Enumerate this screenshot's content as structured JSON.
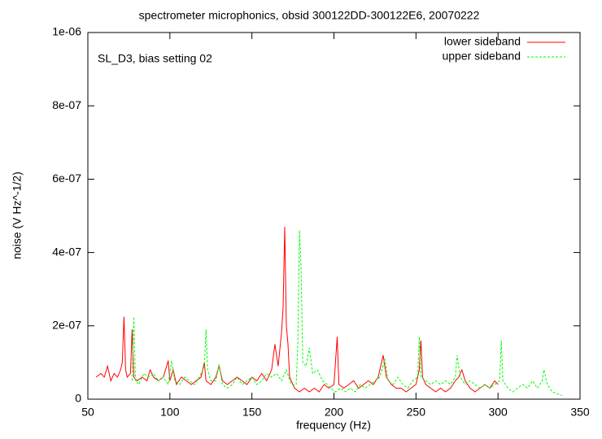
{
  "chart_data": {
    "type": "line",
    "title": "spectrometer microphonics, obsid 300122DD-300122E6, 20070222",
    "annotation": "SL_D3, bias setting 02",
    "x_label": "frequency (Hz)",
    "y_label": "noise (V Hz^-1/2)",
    "xlim": [
      50,
      350
    ],
    "xticks": [
      50,
      100,
      150,
      200,
      250,
      300,
      350
    ],
    "ylim": [
      0,
      1e-06
    ],
    "yticks": [
      0,
      {
        "value": 2e-07,
        "label": "2e-07"
      },
      {
        "value": 4e-07,
        "label": "4e-07"
      },
      {
        "value": 6e-07,
        "label": "6e-07"
      },
      {
        "value": 8e-07,
        "label": "8e-07"
      },
      {
        "value": 1e-06,
        "label": "1e-06"
      }
    ],
    "legend": "top-right",
    "series": [
      {
        "name": "lower sideband",
        "color": "#ff0000",
        "dash": false,
        "x": [
          55,
          58,
          60,
          62,
          64,
          66,
          68,
          70,
          71,
          72,
          73,
          74,
          76,
          77,
          78,
          80,
          83,
          86,
          88,
          90,
          93,
          96,
          99,
          100,
          102,
          104,
          107,
          110,
          113,
          116,
          119,
          121,
          122,
          125,
          128,
          130,
          132,
          135,
          138,
          141,
          144,
          147,
          150,
          153,
          156,
          159,
          162,
          164,
          166,
          168,
          169,
          170,
          171,
          172,
          173,
          176,
          179,
          182,
          185,
          188,
          191,
          194,
          197,
          200,
          202,
          203,
          206,
          209,
          212,
          215,
          218,
          221,
          224,
          227,
          230,
          232,
          235,
          238,
          241,
          244,
          247,
          250,
          252,
          253,
          254,
          256,
          259,
          262,
          265,
          268,
          271,
          274,
          276,
          278,
          280,
          283,
          286,
          289,
          292,
          295,
          298,
          300
        ],
        "values": [
          6e-08,
          7e-08,
          6e-08,
          9e-08,
          5e-08,
          7e-08,
          6e-08,
          8e-08,
          1e-07,
          2.25e-07,
          8e-08,
          6e-08,
          7e-08,
          1.9e-07,
          6e-08,
          5e-08,
          6e-08,
          5e-08,
          8e-08,
          6e-08,
          5e-08,
          6e-08,
          1.05e-07,
          5e-08,
          8e-08,
          4e-08,
          6e-08,
          5e-08,
          4e-08,
          5e-08,
          6e-08,
          1e-07,
          5e-08,
          4e-08,
          6e-08,
          9e-08,
          5e-08,
          4e-08,
          5e-08,
          6e-08,
          5e-08,
          4e-08,
          6e-08,
          5e-08,
          7e-08,
          5e-08,
          8e-08,
          1.5e-07,
          9e-08,
          1.8e-07,
          2.5e-07,
          4.7e-07,
          2e-07,
          1.5e-07,
          6e-08,
          3e-08,
          2e-08,
          3e-08,
          2e-08,
          3e-08,
          2e-08,
          4e-08,
          3e-08,
          4e-08,
          1.7e-07,
          4e-08,
          3e-08,
          4e-08,
          5e-08,
          3e-08,
          4e-08,
          5e-08,
          4e-08,
          6e-08,
          1.2e-07,
          6e-08,
          4e-08,
          3e-08,
          3e-08,
          2e-08,
          3e-08,
          4e-08,
          8e-08,
          1.6e-07,
          6e-08,
          4e-08,
          3e-08,
          2e-08,
          3e-08,
          2e-08,
          3e-08,
          5e-08,
          6e-08,
          8e-08,
          5e-08,
          3e-08,
          2e-08,
          3e-08,
          4e-08,
          3e-08,
          5e-08,
          4e-08
        ]
      },
      {
        "name": "upper sideband",
        "color": "#00ff00",
        "dash": true,
        "x": [
          77,
          78,
          79,
          81,
          84,
          87,
          90,
          93,
          96,
          99,
          101,
          103,
          106,
          109,
          112,
          115,
          118,
          121,
          122,
          123,
          125,
          128,
          130,
          132,
          135,
          138,
          141,
          144,
          147,
          150,
          153,
          156,
          159,
          162,
          165,
          168,
          171,
          174,
          177,
          178,
          179,
          180,
          181,
          183,
          185,
          187,
          190,
          193,
          196,
          198,
          201,
          204,
          207,
          210,
          213,
          216,
          219,
          222,
          225,
          228,
          231,
          233,
          236,
          239,
          242,
          245,
          248,
          251,
          252,
          253,
          256,
          259,
          262,
          265,
          268,
          271,
          274,
          275,
          277,
          280,
          283,
          286,
          289,
          292,
          295,
          298,
          301,
          302,
          303,
          306,
          309,
          312,
          315,
          318,
          321,
          324,
          327,
          328,
          330,
          333,
          336,
          339
        ],
        "values": [
          5e-08,
          2.25e-07,
          5e-08,
          4e-08,
          7e-08,
          6e-08,
          7e-08,
          5e-08,
          6e-08,
          4e-08,
          1.05e-07,
          5e-08,
          4e-08,
          6e-08,
          5e-08,
          4e-08,
          6e-08,
          9e-08,
          1.9e-07,
          8e-08,
          5e-08,
          5e-08,
          9.5e-08,
          4e-08,
          3e-08,
          4e-08,
          6e-08,
          4e-08,
          5e-08,
          6e-08,
          4e-08,
          5e-08,
          7e-08,
          6e-08,
          7e-08,
          5e-08,
          8e-08,
          4e-08,
          4e-08,
          1.5e-07,
          4.6e-07,
          3.5e-07,
          1e-07,
          9e-08,
          1.4e-07,
          7e-08,
          8e-08,
          5e-08,
          4e-08,
          3e-08,
          2e-08,
          3e-08,
          2e-08,
          3e-08,
          2e-08,
          4e-08,
          3e-08,
          4e-08,
          5e-08,
          6e-08,
          1.1e-07,
          5e-08,
          4e-08,
          6e-08,
          4e-08,
          3e-08,
          5e-08,
          6e-08,
          1.7e-07,
          6e-08,
          5e-08,
          4e-08,
          5e-08,
          4e-08,
          5e-08,
          4e-08,
          6e-08,
          1.2e-07,
          6e-08,
          4e-08,
          5e-08,
          4e-08,
          3e-08,
          4e-08,
          3e-08,
          4e-08,
          5e-08,
          1.6e-07,
          5e-08,
          3e-08,
          2e-08,
          3e-08,
          4e-08,
          3e-08,
          5e-08,
          3e-08,
          5e-08,
          8e-08,
          4e-08,
          2e-08,
          1.5e-08,
          1e-08
        ]
      }
    ]
  }
}
